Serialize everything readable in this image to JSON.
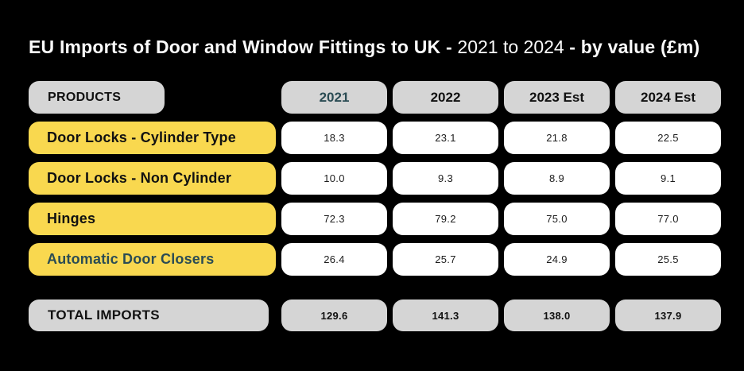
{
  "title": {
    "part1": "EU Imports of Door and Window Fittings to UK - ",
    "part2": "2021 to 2024",
    "part3": " - by value (£m)"
  },
  "table": {
    "products_header": "PRODUCTS",
    "year_headers": [
      {
        "label": "2021",
        "highlighted": true
      },
      {
        "label": "2022",
        "highlighted": false
      },
      {
        "label": "2023 Est",
        "highlighted": false
      },
      {
        "label": "2024 Est",
        "highlighted": false
      }
    ],
    "rows": [
      {
        "product": "Door Locks - Cylinder Type",
        "highlighted": false,
        "values": [
          "18.3",
          "23.1",
          "21.8",
          "22.5"
        ]
      },
      {
        "product": "Door Locks - Non Cylinder",
        "highlighted": false,
        "values": [
          "10.0",
          "9.3",
          "8.9",
          "9.1"
        ]
      },
      {
        "product": "Hinges",
        "highlighted": false,
        "values": [
          "72.3",
          "79.2",
          "75.0",
          "77.0"
        ]
      },
      {
        "product": "Automatic Door Closers",
        "highlighted": true,
        "values": [
          "26.4",
          "25.7",
          "24.9",
          "25.5"
        ]
      }
    ],
    "total_row": {
      "label": "TOTAL IMPORTS",
      "values": [
        "129.6",
        "141.3",
        "138.0",
        "137.9"
      ]
    }
  },
  "chart_data": {
    "type": "table",
    "title": "EU Imports of Door and Window Fittings to UK - 2021 to 2024 - by value (£m)",
    "categories": [
      "2021",
      "2022",
      "2023 Est",
      "2024 Est"
    ],
    "series": [
      {
        "name": "Door Locks - Cylinder Type",
        "values": [
          18.3,
          23.1,
          21.8,
          22.5
        ]
      },
      {
        "name": "Door Locks - Non Cylinder",
        "values": [
          10.0,
          9.3,
          8.9,
          9.1
        ]
      },
      {
        "name": "Hinges",
        "values": [
          72.3,
          79.2,
          75.0,
          77.0
        ]
      },
      {
        "name": "Automatic Door Closers",
        "values": [
          26.4,
          25.7,
          24.9,
          25.5
        ]
      },
      {
        "name": "TOTAL IMPORTS",
        "values": [
          129.6,
          141.3,
          138.0,
          137.9
        ]
      }
    ]
  },
  "colors": {
    "background": "#000000",
    "gray_pill": "#d5d5d5",
    "yellow_pill": "#f9d84f",
    "white_pill": "#ffffff",
    "teal_text": "#2b4c54",
    "black_text": "#111111",
    "title_text": "#fbfbfb"
  }
}
